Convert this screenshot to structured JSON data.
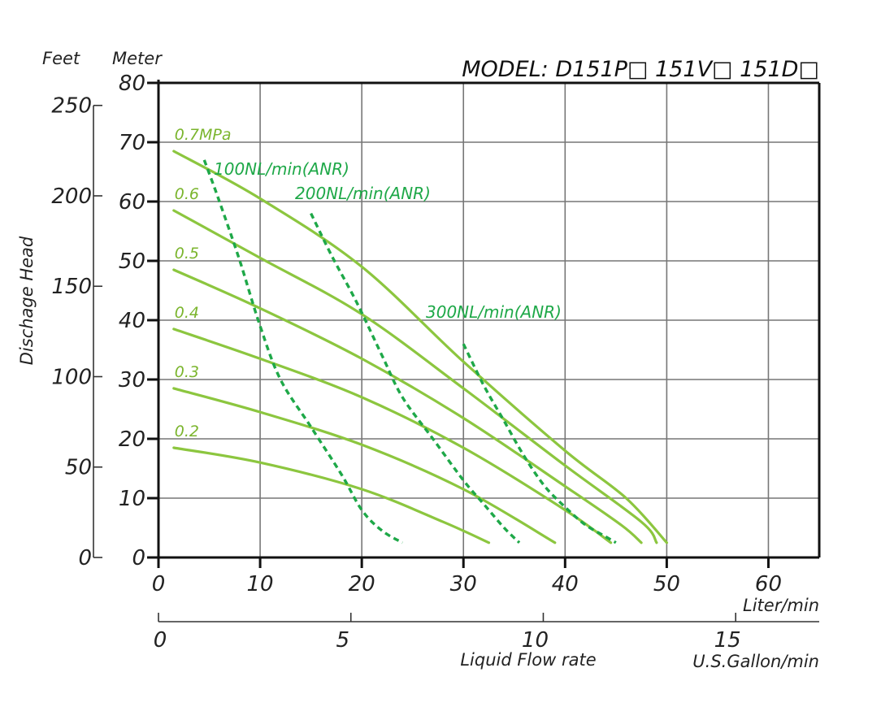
{
  "chart_data": {
    "type": "line",
    "title": "MODEL: D151P□ 151V□ 151D□",
    "xlabel": "Liquid Flow rate",
    "ylabel": "Dischage Head",
    "x_unit_primary": "Liter/min",
    "x_unit_secondary": "U.S.Gallon/min",
    "y_unit_left": "Feet",
    "y_unit_right": "Meter",
    "xlim": [
      0,
      65
    ],
    "ylim": [
      0,
      80
    ],
    "grid": true,
    "x_ticks": [
      "0",
      "10",
      "20",
      "30",
      "40",
      "50",
      "60"
    ],
    "y_ticks_meter": [
      "0",
      "10",
      "20",
      "30",
      "40",
      "50",
      "60",
      "70",
      "80"
    ],
    "y_ticks_feet": [
      "0",
      "50",
      "100",
      "150",
      "200",
      "250"
    ],
    "gallon_ticks": [
      "0",
      "5",
      "10",
      "15"
    ],
    "colors": {
      "pressure_curve": "#8cc63f",
      "pressure_label": "#7bb52e",
      "air_curve": "#1ea848",
      "air_label": "#1ea848",
      "axis": "#111111",
      "grid": "#777777"
    },
    "pressure_series": [
      {
        "name": "0.7MPa",
        "points": [
          [
            1.5,
            68.5
          ],
          [
            10,
            60.5
          ],
          [
            20,
            49
          ],
          [
            30,
            33
          ],
          [
            40,
            18
          ],
          [
            46,
            10
          ],
          [
            50,
            2.5
          ]
        ]
      },
      {
        "name": "0.6",
        "points": [
          [
            1.5,
            58.5
          ],
          [
            10,
            50.5
          ],
          [
            20,
            41
          ],
          [
            30,
            28.5
          ],
          [
            40,
            15.5
          ],
          [
            47.5,
            6
          ],
          [
            49,
            2.5
          ]
        ]
      },
      {
        "name": "0.5",
        "points": [
          [
            1.5,
            48.5
          ],
          [
            10,
            42
          ],
          [
            20,
            33.5
          ],
          [
            30,
            23.5
          ],
          [
            40,
            12
          ],
          [
            45.5,
            5.5
          ],
          [
            47.5,
            2.5
          ]
        ]
      },
      {
        "name": "0.4",
        "points": [
          [
            1.5,
            38.5
          ],
          [
            10,
            33.5
          ],
          [
            20,
            27
          ],
          [
            30,
            18.5
          ],
          [
            40,
            8
          ],
          [
            44.5,
            2.5
          ]
        ]
      },
      {
        "name": "0.3",
        "points": [
          [
            1.5,
            28.5
          ],
          [
            10,
            24.5
          ],
          [
            20,
            19
          ],
          [
            30,
            11.5
          ],
          [
            39,
            2.5
          ]
        ]
      },
      {
        "name": "0.2",
        "points": [
          [
            1.5,
            18.5
          ],
          [
            10,
            16
          ],
          [
            20,
            11.5
          ],
          [
            28,
            6
          ],
          [
            32.5,
            2.5
          ]
        ]
      }
    ],
    "air_series": [
      {
        "name": "100NL/min(ANR)",
        "points": [
          [
            4.5,
            67
          ],
          [
            6,
            60
          ],
          [
            8,
            50
          ],
          [
            10,
            39
          ],
          [
            12,
            30
          ],
          [
            15,
            22
          ],
          [
            18,
            14
          ],
          [
            20,
            8
          ],
          [
            22,
            4.5
          ],
          [
            24,
            2.5
          ]
        ]
      },
      {
        "name": "200NL/min(ANR)",
        "points": [
          [
            15,
            58
          ],
          [
            17,
            51
          ],
          [
            19.5,
            43
          ],
          [
            22,
            34
          ],
          [
            24,
            27
          ],
          [
            27,
            20
          ],
          [
            30,
            13
          ],
          [
            32,
            9
          ],
          [
            34,
            5
          ],
          [
            35.5,
            2.5
          ]
        ]
      },
      {
        "name": "300NL/min(ANR)",
        "points": [
          [
            30,
            36
          ],
          [
            32,
            29
          ],
          [
            34,
            23
          ],
          [
            36,
            17
          ],
          [
            38,
            12
          ],
          [
            40,
            8.5
          ],
          [
            42,
            5.5
          ],
          [
            44,
            3.5
          ],
          [
            45,
            2.5
          ]
        ]
      }
    ]
  }
}
